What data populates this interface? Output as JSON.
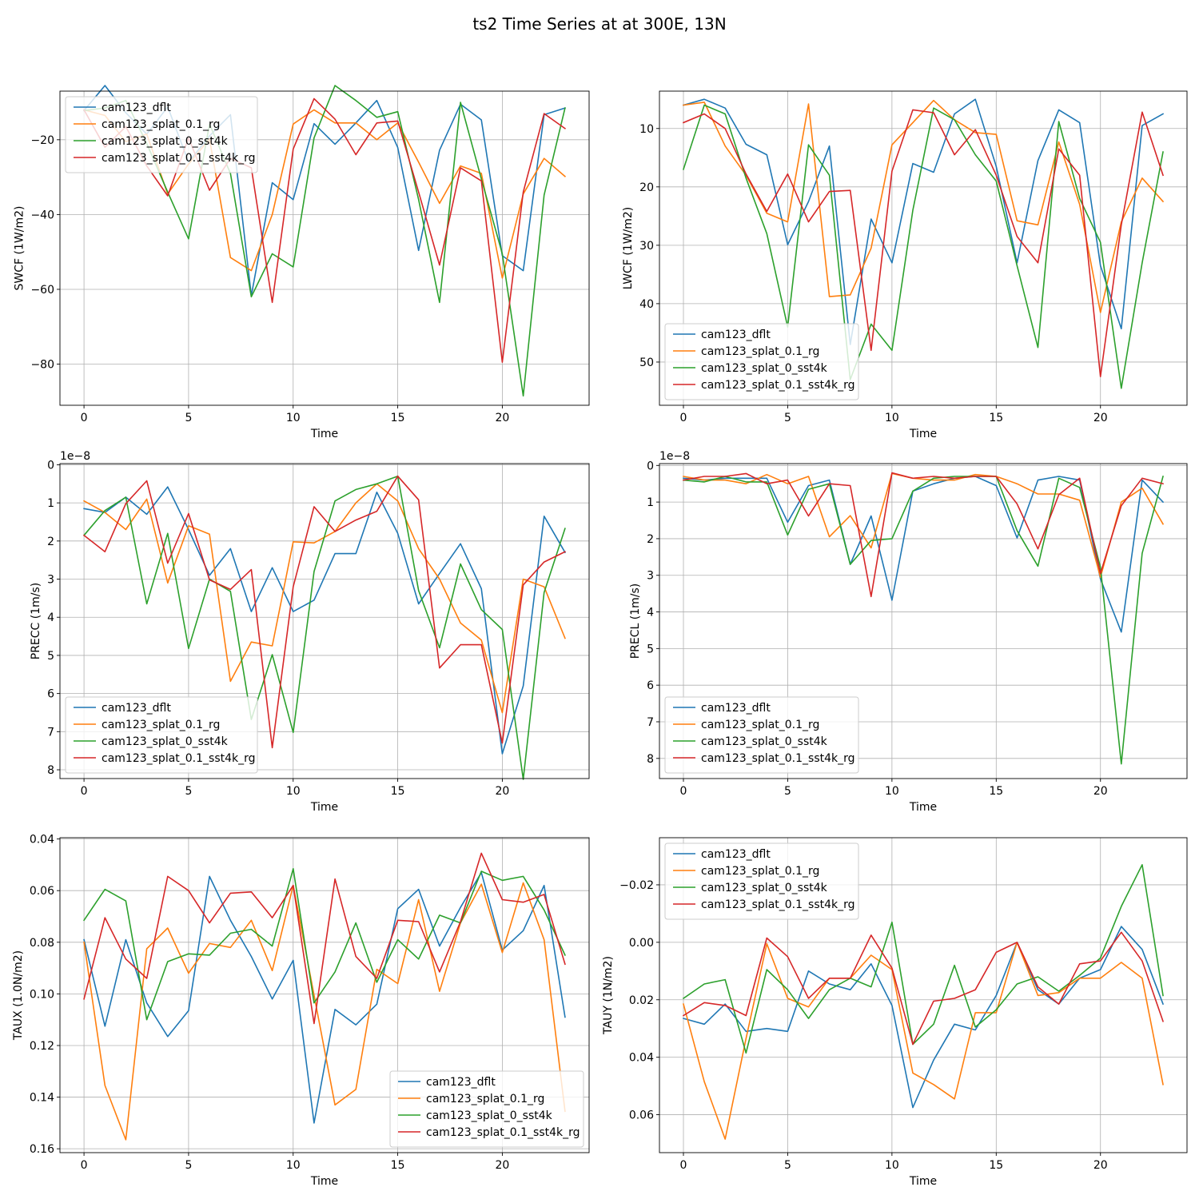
{
  "figure_title": "ts2 Time Series at at 300E, 13N",
  "series_colors": [
    "#1f77b4",
    "#ff7f0e",
    "#2ca02c",
    "#d62728"
  ],
  "legend_labels": [
    "cam123_dflt",
    "cam123_splat_0.1_rg",
    "cam123_splat_0_sst4k",
    "cam123_splat_0.1_sst4k_rg"
  ],
  "chart_data": [
    {
      "type": "line",
      "ylabel": "SWCF (1W/m2)",
      "xlabel": "Time",
      "xlim": [
        -1.15,
        24.15
      ],
      "ylim": [
        -7,
        -91
      ],
      "xticks": [
        0,
        5,
        10,
        15,
        20
      ],
      "xtick_labels": [
        "0",
        "5",
        "10",
        "15",
        "20"
      ],
      "yticks": [
        -20,
        -40,
        -60,
        -80
      ],
      "ytick_labels": [
        "−20",
        "−40",
        "−60",
        "−80"
      ],
      "offset_label": "",
      "legend_loc": "upper left",
      "x": [
        0,
        1,
        2,
        3,
        4,
        5,
        6,
        7,
        8,
        9,
        10,
        11,
        12,
        13,
        14,
        15,
        16,
        17,
        18,
        19,
        20,
        21,
        22,
        23
      ],
      "series": [
        {
          "name": "cam123_dflt",
          "values": [
            -12.2,
            -5.5,
            -12.8,
            -18.5,
            -11.2,
            -26.0,
            -19.0,
            -13.3,
            -61.7,
            -31.5,
            -36.0,
            -15.7,
            -21.2,
            -15.5,
            -9.5,
            -22.1,
            -49.6,
            -22.8,
            -10.5,
            -14.7,
            -51.0,
            -55.0,
            -13.3,
            -11.5
          ]
        },
        {
          "name": "cam123_splat_0.1_rg",
          "values": [
            -12.0,
            -13.5,
            -20.5,
            -18.5,
            -34.5,
            -26.5,
            -19.8,
            -51.5,
            -55.0,
            -40.0,
            -15.8,
            -12.0,
            -15.5,
            -15.5,
            -20.0,
            -15.5,
            -26.0,
            -37.0,
            -27.0,
            -29.0,
            -57.0,
            -34.5,
            -25.0,
            -29.8
          ]
        },
        {
          "name": "cam123_splat_0_sst4k",
          "values": [
            -12.2,
            -11.5,
            -9.5,
            -21.0,
            -34.0,
            -46.5,
            -15.8,
            -29.0,
            -62.0,
            -50.5,
            -54.0,
            -19.5,
            -5.5,
            -9.5,
            -14.0,
            -12.5,
            -36.0,
            -63.5,
            -10.0,
            -30.5,
            -50.5,
            -88.5,
            -34.8,
            -11.5
          ]
        },
        {
          "name": "cam123_splat_0.1_sst4k_rg",
          "values": [
            -12.0,
            -22.0,
            -16.5,
            -27.0,
            -35.0,
            -19.5,
            -33.5,
            -25.0,
            -27.5,
            -63.5,
            -22.5,
            -9.0,
            -14.5,
            -24.0,
            -15.5,
            -15.0,
            -34.0,
            -53.5,
            -27.5,
            -31.0,
            -79.5,
            -34.0,
            -13.0,
            -17.0
          ]
        }
      ]
    },
    {
      "type": "line",
      "ylabel": "LWCF (1W/m2)",
      "xlabel": "Time",
      "xlim": [
        -1.15,
        24.15
      ],
      "ylim": [
        3.6,
        57.4
      ],
      "xticks": [
        0,
        5,
        10,
        15,
        20
      ],
      "xtick_labels": [
        "0",
        "5",
        "10",
        "15",
        "20"
      ],
      "yticks": [
        10,
        20,
        30,
        40,
        50
      ],
      "ytick_labels": [
        "10",
        "20",
        "30",
        "40",
        "50"
      ],
      "offset_label": "",
      "legend_loc": "lower left",
      "x": [
        0,
        1,
        2,
        3,
        4,
        5,
        6,
        7,
        8,
        9,
        10,
        11,
        12,
        13,
        14,
        15,
        16,
        17,
        18,
        19,
        20,
        21,
        22,
        23
      ],
      "series": [
        {
          "name": "cam123_dflt",
          "values": [
            6.0,
            5.0,
            6.5,
            12.7,
            14.5,
            29.9,
            22.5,
            13.0,
            47.0,
            25.5,
            33.0,
            16.0,
            17.5,
            7.5,
            5.0,
            16.5,
            33.0,
            15.5,
            6.8,
            9.0,
            33.5,
            44.3,
            9.5,
            7.5
          ]
        },
        {
          "name": "cam123_splat_0.1_rg",
          "values": [
            6.0,
            5.5,
            13.0,
            18.0,
            24.5,
            26.0,
            5.8,
            38.8,
            38.5,
            30.5,
            12.8,
            9.0,
            5.2,
            8.5,
            10.7,
            11.0,
            25.8,
            26.5,
            12.3,
            23.0,
            41.5,
            26.0,
            18.5,
            22.5
          ]
        },
        {
          "name": "cam123_splat_0_sst4k",
          "values": [
            17.0,
            6.0,
            7.5,
            18.5,
            28.0,
            44.0,
            12.8,
            18.0,
            53.0,
            43.5,
            48.0,
            24.0,
            6.5,
            8.5,
            14.5,
            19.0,
            33.5,
            47.5,
            8.8,
            22.0,
            29.5,
            54.5,
            33.0,
            14.0
          ]
        },
        {
          "name": "cam123_splat_0.1_sst4k_rg",
          "values": [
            9.0,
            7.5,
            10.0,
            17.8,
            24.2,
            17.8,
            26.0,
            20.8,
            20.6,
            48.0,
            17.3,
            6.8,
            7.3,
            14.5,
            10.2,
            18.0,
            28.5,
            33.0,
            13.5,
            18.0,
            52.5,
            26.5,
            7.2,
            18.0
          ]
        }
      ]
    },
    {
      "type": "line",
      "ylabel": "PRECC (1m/s)",
      "xlabel": "Time",
      "xlim": [
        -1.15,
        24.15
      ],
      "ylim": [
        -0.03,
        8.23
      ],
      "xticks": [
        0,
        5,
        10,
        15,
        20
      ],
      "xtick_labels": [
        "0",
        "5",
        "10",
        "15",
        "20"
      ],
      "yticks": [
        0,
        1,
        2,
        3,
        4,
        5,
        6,
        7,
        8
      ],
      "ytick_labels": [
        "0",
        "1",
        "2",
        "3",
        "4",
        "5",
        "6",
        "7",
        "8"
      ],
      "offset_label": "1e−8",
      "legend_loc": "lower left",
      "x": [
        0,
        1,
        2,
        3,
        4,
        5,
        6,
        7,
        8,
        9,
        10,
        11,
        12,
        13,
        14,
        15,
        16,
        17,
        18,
        19,
        20,
        21,
        22,
        23
      ],
      "series": [
        {
          "name": "cam123_dflt",
          "values": [
            1.15,
            1.25,
            0.85,
            1.3,
            0.58,
            1.7,
            2.9,
            2.2,
            3.85,
            2.7,
            3.85,
            3.55,
            2.33,
            2.33,
            0.72,
            1.8,
            3.65,
            2.85,
            2.07,
            3.25,
            7.58,
            5.8,
            1.35,
            2.3
          ]
        },
        {
          "name": "cam123_splat_0.1_rg",
          "values": [
            0.95,
            1.25,
            1.7,
            0.9,
            3.1,
            1.6,
            1.82,
            5.68,
            4.65,
            4.75,
            2.02,
            2.05,
            1.75,
            1.0,
            0.5,
            0.95,
            2.2,
            3.0,
            4.15,
            4.6,
            6.5,
            3.0,
            3.2,
            4.55
          ]
        },
        {
          "name": "cam123_splat_0_sst4k",
          "values": [
            1.85,
            1.2,
            0.85,
            3.65,
            1.8,
            4.82,
            3.0,
            3.32,
            6.68,
            4.98,
            7.02,
            2.8,
            0.95,
            0.65,
            0.5,
            0.3,
            3.3,
            4.8,
            2.6,
            3.8,
            4.32,
            8.25,
            3.35,
            1.67
          ]
        },
        {
          "name": "cam123_splat_0.1_sst4k_rg",
          "values": [
            1.85,
            2.28,
            1.02,
            0.42,
            2.58,
            1.28,
            3.02,
            3.27,
            2.75,
            7.42,
            3.2,
            1.1,
            1.75,
            1.45,
            1.22,
            0.3,
            0.92,
            5.33,
            4.72,
            4.72,
            7.3,
            3.15,
            2.55,
            2.28
          ]
        }
      ]
    },
    {
      "type": "line",
      "ylabel": "PRECL (1m/s)",
      "xlabel": "Time",
      "xlim": [
        -1.15,
        24.15
      ],
      "ylim": [
        -0.05,
        8.55
      ],
      "xticks": [
        0,
        5,
        10,
        15,
        20
      ],
      "xtick_labels": [
        "0",
        "5",
        "10",
        "15",
        "20"
      ],
      "yticks": [
        0,
        1,
        2,
        3,
        4,
        5,
        6,
        7,
        8
      ],
      "ytick_labels": [
        "0",
        "1",
        "2",
        "3",
        "4",
        "5",
        "6",
        "7",
        "8"
      ],
      "offset_label": "1e−8",
      "legend_loc": "lower left",
      "x": [
        0,
        1,
        2,
        3,
        4,
        5,
        6,
        7,
        8,
        9,
        10,
        11,
        12,
        13,
        14,
        15,
        16,
        17,
        18,
        19,
        20,
        21,
        22,
        23
      ],
      "series": [
        {
          "name": "cam123_dflt",
          "values": [
            0.35,
            0.4,
            0.35,
            0.35,
            0.35,
            1.55,
            0.55,
            0.4,
            2.7,
            1.38,
            3.68,
            0.7,
            0.5,
            0.35,
            0.3,
            0.55,
            1.98,
            0.4,
            0.3,
            0.4,
            3.1,
            4.55,
            0.4,
            1.0
          ]
        },
        {
          "name": "cam123_splat_0.1_rg",
          "values": [
            0.3,
            0.4,
            0.4,
            0.5,
            0.25,
            0.5,
            0.3,
            1.95,
            1.37,
            2.25,
            0.22,
            0.35,
            0.4,
            0.4,
            0.25,
            0.3,
            0.5,
            0.78,
            0.78,
            0.95,
            3.05,
            1.0,
            0.62,
            1.6
          ]
        },
        {
          "name": "cam123_splat_0_sst4k",
          "values": [
            0.4,
            0.45,
            0.3,
            0.45,
            0.45,
            1.9,
            0.65,
            0.5,
            2.7,
            2.05,
            2.0,
            0.7,
            0.35,
            0.3,
            0.3,
            0.3,
            1.78,
            2.75,
            0.35,
            0.6,
            2.78,
            8.15,
            2.4,
            0.3
          ]
        },
        {
          "name": "cam123_splat_0.1_sst4k_rg",
          "values": [
            0.4,
            0.3,
            0.3,
            0.22,
            0.5,
            0.4,
            1.38,
            0.5,
            0.55,
            3.58,
            0.2,
            0.35,
            0.3,
            0.35,
            0.3,
            0.3,
            1.05,
            2.28,
            0.8,
            0.35,
            2.95,
            1.1,
            0.35,
            0.5
          ]
        }
      ]
    },
    {
      "type": "line",
      "ylabel": "TAUX (1.0N/m2)",
      "xlabel": "Time",
      "xlim": [
        -1.15,
        24.15
      ],
      "ylim": [
        0.0395,
        0.1615
      ],
      "xticks": [
        0,
        5,
        10,
        15,
        20
      ],
      "xtick_labels": [
        "0",
        "5",
        "10",
        "15",
        "20"
      ],
      "yticks": [
        0.04,
        0.06,
        0.08,
        0.1,
        0.12,
        0.14,
        0.16
      ],
      "ytick_labels": [
        "0.04",
        "0.06",
        "0.08",
        "0.10",
        "0.12",
        "0.14",
        "0.16"
      ],
      "offset_label": "",
      "legend_loc": "lower right",
      "x": [
        0,
        1,
        2,
        3,
        4,
        5,
        6,
        7,
        8,
        9,
        10,
        11,
        12,
        13,
        14,
        15,
        16,
        17,
        18,
        19,
        20,
        21,
        22,
        23
      ],
      "series": [
        {
          "name": "cam123_dflt",
          "values": [
            0.079,
            0.1125,
            0.079,
            0.1035,
            0.1165,
            0.1065,
            0.0545,
            0.0715,
            0.0855,
            0.102,
            0.087,
            0.15,
            0.106,
            0.112,
            0.104,
            0.067,
            0.0595,
            0.0815,
            0.0665,
            0.053,
            0.083,
            0.0755,
            0.058,
            0.109
          ]
        },
        {
          "name": "cam123_splat_0.1_rg",
          "values": [
            0.08,
            0.1355,
            0.1565,
            0.0825,
            0.0745,
            0.092,
            0.0805,
            0.082,
            0.0715,
            0.091,
            0.058,
            0.1005,
            0.143,
            0.137,
            0.0905,
            0.096,
            0.0635,
            0.099,
            0.0725,
            0.0575,
            0.084,
            0.057,
            0.079,
            0.1455
          ]
        },
        {
          "name": "cam123_splat_0_sst4k",
          "values": [
            0.0715,
            0.0595,
            0.064,
            0.11,
            0.0875,
            0.0845,
            0.085,
            0.0765,
            0.075,
            0.0815,
            0.0515,
            0.1035,
            0.0915,
            0.0725,
            0.0955,
            0.079,
            0.0865,
            0.0695,
            0.0725,
            0.0525,
            0.056,
            0.0545,
            0.0675,
            0.085
          ]
        },
        {
          "name": "cam123_splat_0.1_sst4k_rg",
          "values": [
            0.102,
            0.0705,
            0.0865,
            0.094,
            0.0545,
            0.06,
            0.0725,
            0.061,
            0.0605,
            0.0705,
            0.058,
            0.1115,
            0.0555,
            0.0855,
            0.094,
            0.0715,
            0.072,
            0.0915,
            0.072,
            0.0455,
            0.0635,
            0.0645,
            0.0615,
            0.0885
          ]
        }
      ]
    },
    {
      "type": "line",
      "ylabel": "TAUY (1N/m2)",
      "xlabel": "Time",
      "xlim": [
        -1.15,
        24.15
      ],
      "ylim": [
        -0.0364,
        0.0732
      ],
      "xticks": [
        0,
        5,
        10,
        15,
        20
      ],
      "xtick_labels": [
        "0",
        "5",
        "10",
        "15",
        "20"
      ],
      "yticks": [
        -0.02,
        0.0,
        0.02,
        0.04,
        0.06
      ],
      "ytick_labels": [
        "−0.02",
        "0.00",
        "0.02",
        "0.04",
        "0.06"
      ],
      "offset_label": "",
      "legend_loc": "upper left",
      "x": [
        0,
        1,
        2,
        3,
        4,
        5,
        6,
        7,
        8,
        9,
        10,
        11,
        12,
        13,
        14,
        15,
        16,
        17,
        18,
        19,
        20,
        21,
        22,
        23
      ],
      "series": [
        {
          "name": "cam123_dflt",
          "values": [
            0.0265,
            0.0285,
            0.0215,
            0.031,
            0.03,
            0.031,
            0.01,
            0.0145,
            0.0165,
            0.0075,
            0.022,
            0.0575,
            0.041,
            0.0285,
            0.0305,
            0.0185,
            0.0,
            0.0165,
            0.0215,
            0.0125,
            0.0095,
            -0.0055,
            0.0025,
            0.0215
          ]
        },
        {
          "name": "cam123_splat_0.1_rg",
          "values": [
            0.0215,
            0.0485,
            0.0685,
            0.0335,
            0.0005,
            0.0195,
            0.0225,
            0.0125,
            0.0125,
            0.0045,
            0.0095,
            0.0455,
            0.0495,
            0.0545,
            0.0245,
            0.0245,
            0.0,
            0.0185,
            0.0175,
            0.0125,
            0.0125,
            0.007,
            0.0125,
            0.0495
          ]
        },
        {
          "name": "cam123_splat_0_sst4k",
          "values": [
            0.0195,
            0.0145,
            0.013,
            0.0385,
            0.0095,
            0.0165,
            0.0265,
            0.0165,
            0.0125,
            0.0155,
            -0.007,
            0.0355,
            0.0285,
            0.008,
            0.0295,
            0.0235,
            0.0145,
            0.012,
            0.017,
            0.0115,
            0.0055,
            -0.0125,
            -0.027,
            0.0185
          ]
        },
        {
          "name": "cam123_splat_0.1_sst4k_rg",
          "values": [
            0.0255,
            0.021,
            0.022,
            0.0255,
            -0.0015,
            0.005,
            0.0195,
            0.0125,
            0.0125,
            -0.0025,
            0.009,
            0.0355,
            0.0205,
            0.0195,
            0.0165,
            0.0035,
            0.0,
            0.0155,
            0.0215,
            0.0075,
            0.0065,
            -0.0035,
            0.0065,
            0.0275
          ]
        }
      ]
    }
  ]
}
